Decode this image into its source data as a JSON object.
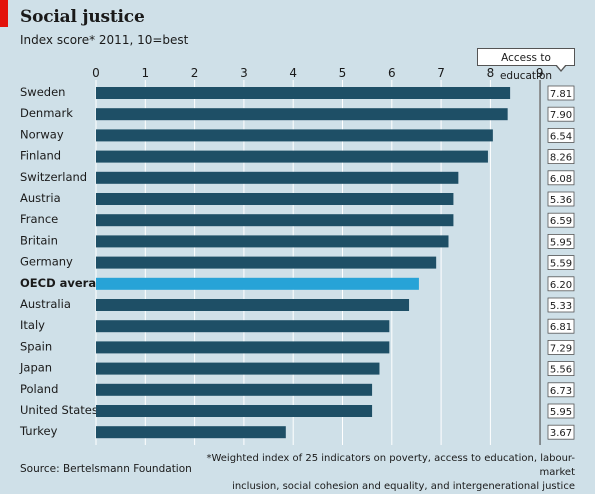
{
  "header": {
    "title": "Social justice",
    "subtitle": "Index score* 2011, 10=best"
  },
  "side_panel_label": "Access to education",
  "footer": {
    "source": "Source: Bertelsmann Foundation",
    "footnote_line1": "*Weighted index of 25 indicators on poverty, access to education, labour-market",
    "footnote_line2": "inclusion, social cohesion and equality, and intergenerational justice"
  },
  "colors": {
    "bar": "#1e4f66",
    "highlight": "#27a3d7",
    "background": "#cfe0e8",
    "gridline": "#ffffff",
    "accent": "#e3120b"
  },
  "chart_data": {
    "type": "bar",
    "orientation": "horizontal",
    "title": "Social justice",
    "subtitle": "Index score* 2011, 10=best",
    "xlim": [
      0,
      9
    ],
    "x_ticks": [
      0,
      1,
      2,
      3,
      4,
      5,
      6,
      7,
      8,
      9
    ],
    "grid": true,
    "highlight_category": "OECD average",
    "categories": [
      "Sweden",
      "Denmark",
      "Norway",
      "Finland",
      "Switzerland",
      "Austria",
      "France",
      "Britain",
      "Germany",
      "OECD average",
      "Australia",
      "Italy",
      "Spain",
      "Japan",
      "Poland",
      "United States",
      "Turkey"
    ],
    "values": [
      8.4,
      8.35,
      8.05,
      7.95,
      7.35,
      7.25,
      7.25,
      7.15,
      6.9,
      6.55,
      6.35,
      5.95,
      5.95,
      5.75,
      5.6,
      5.6,
      3.85
    ],
    "access_to_education": [
      "7.81",
      "7.90",
      "6.54",
      "8.26",
      "6.08",
      "5.36",
      "6.59",
      "5.95",
      "5.59",
      "6.20",
      "5.33",
      "6.81",
      "7.29",
      "5.56",
      "6.73",
      "5.95",
      "3.67"
    ]
  }
}
